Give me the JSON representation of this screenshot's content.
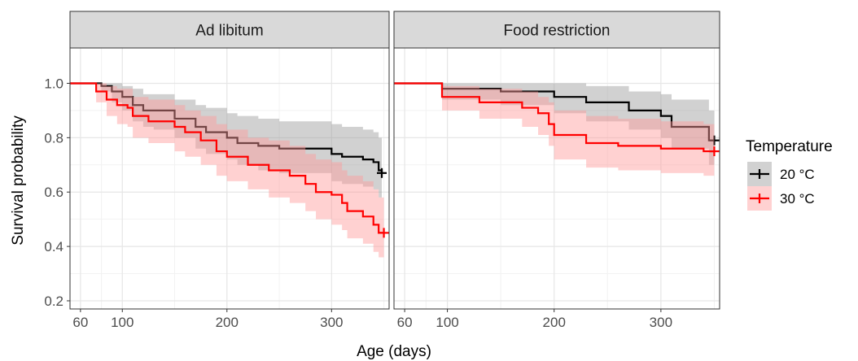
{
  "chart_data": {
    "type": "line",
    "subtype": "kaplan-meier survival curves with confidence bands, faceted",
    "xlabel": "Age (days)",
    "ylabel": "Survival probability",
    "xlim": [
      50,
      355
    ],
    "ylim": [
      0.17,
      1.13
    ],
    "x_ticks": [
      60,
      100,
      200,
      300
    ],
    "y_ticks": [
      0.2,
      0.4,
      0.6,
      0.8,
      1.0
    ],
    "y_tick_labels": [
      "0.2",
      "0.4",
      "0.6",
      "0.8",
      "1.0"
    ],
    "grid": true,
    "legend": {
      "title": "Temperature",
      "position": "right",
      "entries": [
        {
          "label": "20 °C",
          "color": "#000000",
          "band_color": "#999999"
        },
        {
          "label": "30 °C",
          "color": "#ff0000",
          "band_color": "#ff9999"
        }
      ]
    },
    "panels": [
      {
        "title": "Ad libitum",
        "series": [
          {
            "name": "20 °C",
            "x": [
              50,
              70,
              80,
              90,
              100,
              110,
              120,
              130,
              150,
              170,
              180,
              200,
              210,
              230,
              250,
              270,
              300,
              310,
              330,
              340,
              345,
              348
            ],
            "y": [
              1.0,
              1.0,
              0.99,
              0.97,
              0.95,
              0.92,
              0.9,
              0.9,
              0.87,
              0.84,
              0.82,
              0.8,
              0.78,
              0.77,
              0.76,
              0.76,
              0.74,
              0.73,
              0.72,
              0.71,
              0.68,
              0.67
            ],
            "lower": [
              1.0,
              1.0,
              0.97,
              0.93,
              0.9,
              0.86,
              0.84,
              0.83,
              0.8,
              0.76,
              0.74,
              0.72,
              0.7,
              0.68,
              0.67,
              0.67,
              0.64,
              0.63,
              0.62,
              0.61,
              0.58,
              0.57
            ],
            "upper": [
              1.0,
              1.0,
              1.0,
              1.0,
              0.99,
              0.98,
              0.96,
              0.96,
              0.94,
              0.92,
              0.91,
              0.89,
              0.88,
              0.87,
              0.86,
              0.86,
              0.85,
              0.84,
              0.83,
              0.82,
              0.8,
              0.79
            ],
            "censor": [
              348,
              0.67
            ]
          },
          {
            "name": "30 °C",
            "x": [
              50,
              60,
              75,
              85,
              95,
              105,
              110,
              125,
              150,
              160,
              175,
              190,
              200,
              220,
              240,
              260,
              275,
              285,
              300,
              310,
              315,
              330,
              340,
              345,
              350
            ],
            "y": [
              1.0,
              1.0,
              0.97,
              0.94,
              0.92,
              0.91,
              0.88,
              0.86,
              0.84,
              0.82,
              0.79,
              0.75,
              0.73,
              0.7,
              0.68,
              0.66,
              0.63,
              0.6,
              0.59,
              0.56,
              0.53,
              0.51,
              0.48,
              0.45,
              0.45
            ],
            "lower": [
              1.0,
              1.0,
              0.93,
              0.88,
              0.85,
              0.84,
              0.8,
              0.78,
              0.75,
              0.73,
              0.7,
              0.66,
              0.64,
              0.61,
              0.58,
              0.56,
              0.53,
              0.5,
              0.48,
              0.46,
              0.43,
              0.41,
              0.38,
              0.36,
              0.36
            ],
            "upper": [
              1.0,
              1.0,
              1.0,
              0.99,
              0.98,
              0.98,
              0.95,
              0.94,
              0.92,
              0.9,
              0.88,
              0.85,
              0.83,
              0.8,
              0.79,
              0.77,
              0.74,
              0.72,
              0.71,
              0.68,
              0.66,
              0.64,
              0.61,
              0.58,
              0.58
            ],
            "censor": [
              350,
              0.45
            ]
          }
        ]
      },
      {
        "title": "Food restriction",
        "series": [
          {
            "name": "20 °C",
            "x": [
              50,
              80,
              95,
              150,
              200,
              230,
              270,
              300,
              310,
              345,
              350
            ],
            "y": [
              1.0,
              1.0,
              0.98,
              0.97,
              0.95,
              0.93,
              0.9,
              0.88,
              0.84,
              0.79,
              0.79
            ],
            "lower": [
              1.0,
              1.0,
              0.94,
              0.92,
              0.89,
              0.86,
              0.83,
              0.8,
              0.76,
              0.7,
              0.7
            ],
            "upper": [
              1.0,
              1.0,
              1.0,
              1.0,
              1.0,
              0.99,
              0.97,
              0.96,
              0.94,
              0.9,
              0.9
            ],
            "censor": [
              350,
              0.79
            ]
          },
          {
            "name": "30 °C",
            "x": [
              50,
              75,
              95,
              130,
              170,
              185,
              195,
              200,
              230,
              260,
              300,
              320,
              340,
              350
            ],
            "y": [
              1.0,
              1.0,
              0.95,
              0.93,
              0.91,
              0.89,
              0.85,
              0.81,
              0.78,
              0.77,
              0.76,
              0.76,
              0.75,
              0.75
            ],
            "lower": [
              1.0,
              1.0,
              0.9,
              0.87,
              0.84,
              0.81,
              0.77,
              0.72,
              0.69,
              0.68,
              0.67,
              0.67,
              0.66,
              0.66
            ],
            "upper": [
              1.0,
              1.0,
              0.99,
              0.98,
              0.97,
              0.95,
              0.93,
              0.9,
              0.88,
              0.87,
              0.86,
              0.86,
              0.85,
              0.85
            ],
            "censor": [
              350,
              0.75
            ]
          }
        ]
      }
    ]
  }
}
